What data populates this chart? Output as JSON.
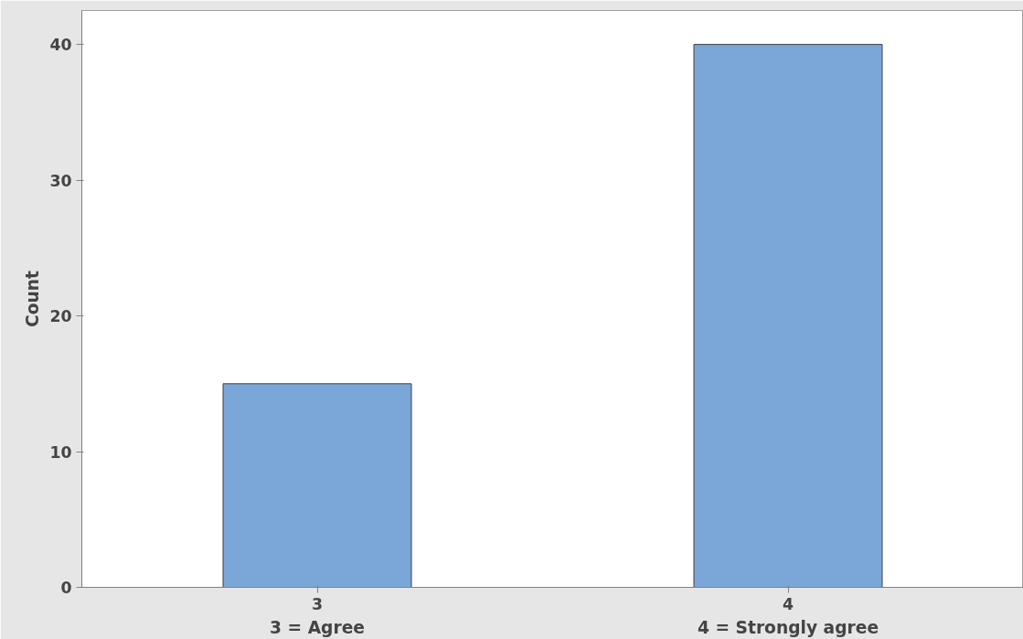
{
  "chart_data": {
    "type": "bar",
    "ylabel": "Count",
    "categories": [
      "3",
      "4"
    ],
    "values": [
      15,
      40
    ],
    "color": "#7ba7d8",
    "ylim": [
      0,
      42.5
    ],
    "yticks": [
      0,
      10,
      20,
      30,
      40
    ],
    "grid": false,
    "annotations": [
      "3 = Agree",
      "4 = Strongly agree"
    ]
  }
}
